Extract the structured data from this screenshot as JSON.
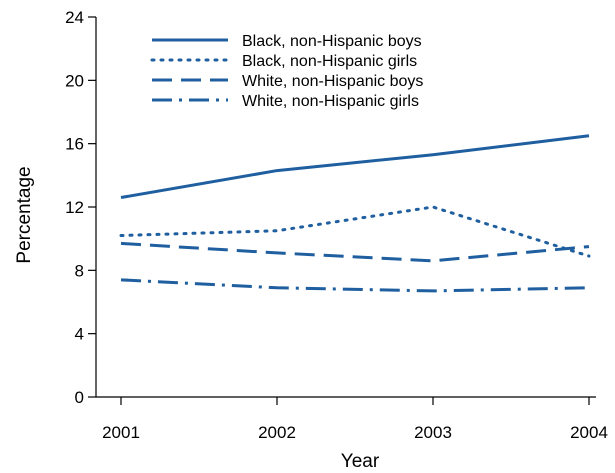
{
  "chart_data": {
    "type": "line",
    "xlabel": "Year",
    "ylabel": "Percentage",
    "x": [
      "2001",
      "2002",
      "2003",
      "2004"
    ],
    "ylim": [
      0,
      24
    ],
    "yticks": [
      "0",
      "4",
      "8",
      "12",
      "16",
      "20",
      "24"
    ],
    "grid": false,
    "legend_position": "top-left",
    "line_color": "#1f5fa0",
    "series": [
      {
        "name": "Black, non-Hispanic boys",
        "style": "solid",
        "values": [
          12.6,
          14.3,
          15.3,
          16.5
        ]
      },
      {
        "name": "Black, non-Hispanic girls",
        "style": "dotted",
        "values": [
          10.2,
          10.5,
          12.0,
          8.9
        ]
      },
      {
        "name": "White, non-Hispanic boys",
        "style": "dashed",
        "values": [
          9.7,
          9.1,
          8.6,
          9.5
        ]
      },
      {
        "name": "White, non-Hispanic girls",
        "style": "dashdot",
        "values": [
          7.4,
          6.9,
          6.7,
          6.9
        ]
      }
    ]
  }
}
